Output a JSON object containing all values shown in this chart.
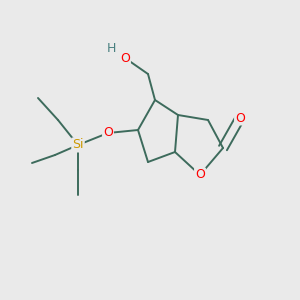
{
  "bg_color": "#eaeaea",
  "bond_color": "#3d6b5c",
  "bond_lw": 1.4,
  "atom_colors": {
    "O": "#ff0000",
    "Si": "#cc9900",
    "H": "#4a8080",
    "C": "#3d6b5c"
  },
  "figsize": [
    3.0,
    3.0
  ],
  "dpi": 100
}
